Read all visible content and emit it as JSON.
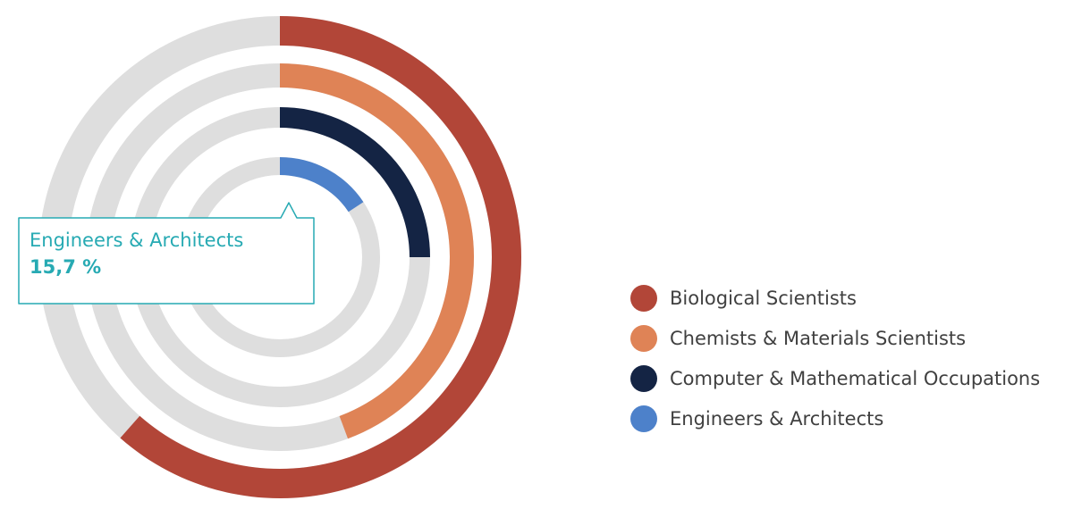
{
  "chart_data": {
    "type": "radial-bar",
    "series": [
      {
        "name": "Biological Scientists",
        "value": 61.5,
        "color": "#B24638"
      },
      {
        "name": "Chemists & Materials Scientists",
        "value": 44.3,
        "color": "#DF8356"
      },
      {
        "name": "Computer & Mathematical Occupations",
        "value": 25.0,
        "color": "#142444"
      },
      {
        "name": "Engineers & Architects",
        "value": 15.7,
        "color": "#4D81CA"
      }
    ],
    "max": 100,
    "track_color": "#DEDEDE",
    "legend_position": "right"
  },
  "tooltip": {
    "name": "Engineers & Architects",
    "value": "15,7 %",
    "color": "#27AAB3"
  }
}
